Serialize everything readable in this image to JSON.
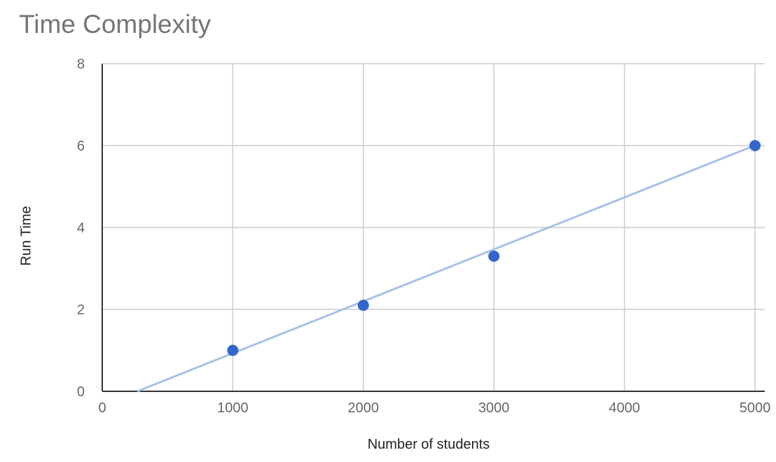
{
  "chart_data": {
    "type": "scatter",
    "title": "Time Complexity",
    "xlabel": "Number of students",
    "ylabel": "Run Time",
    "xlim": [
      0,
      5000
    ],
    "ylim": [
      0,
      8
    ],
    "x_ticks": [
      0,
      1000,
      2000,
      3000,
      4000,
      5000
    ],
    "y_ticks": [
      0,
      2,
      4,
      6,
      8
    ],
    "grid": true,
    "legend": "none",
    "series": [
      {
        "x": [
          1000,
          2000,
          3000,
          5000
        ],
        "y": [
          1.0,
          2.1,
          3.3,
          6.0
        ],
        "color": "#3366cc"
      }
    ],
    "trendline": {
      "type": "linear",
      "slope": 0.001269,
      "intercept": -0.34,
      "color": "#a8c1e8"
    }
  }
}
